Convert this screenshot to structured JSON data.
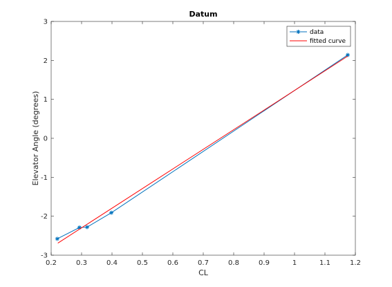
{
  "chart_data": {
    "type": "line",
    "title": "Datum",
    "xlabel": "CL",
    "ylabel": "Elevator Angle (degrees)",
    "xlim": [
      0.2,
      1.2
    ],
    "ylim": [
      -3,
      3
    ],
    "xticks": [
      0.2,
      0.3,
      0.4,
      0.5,
      0.6,
      0.7,
      0.8,
      0.9,
      1.0,
      1.1,
      1.2
    ],
    "xtick_labels": [
      "0.2",
      "0.3",
      "0.4",
      "0.5",
      "0.6",
      "0.7",
      "0.8",
      "0.9",
      "1",
      "1.1",
      "1.2"
    ],
    "yticks": [
      -3,
      -2,
      -1,
      0,
      1,
      2,
      3
    ],
    "ytick_labels": [
      "-3",
      "-2",
      "-1",
      "0",
      "1",
      "2",
      "3"
    ],
    "grid": false,
    "legend_position": "top-right",
    "series": [
      {
        "name": "data",
        "style": "line-with-asterisk-markers",
        "color": "#0072BD",
        "x": [
          0.22,
          0.293,
          0.318,
          0.398,
          1.175
        ],
        "y": [
          -2.58,
          -2.29,
          -2.28,
          -1.91,
          2.14
        ]
      },
      {
        "name": "fitted curve",
        "style": "line",
        "color": "#FF0000",
        "x": [
          0.222,
          1.175
        ],
        "y": [
          -2.69,
          2.11
        ]
      }
    ]
  }
}
